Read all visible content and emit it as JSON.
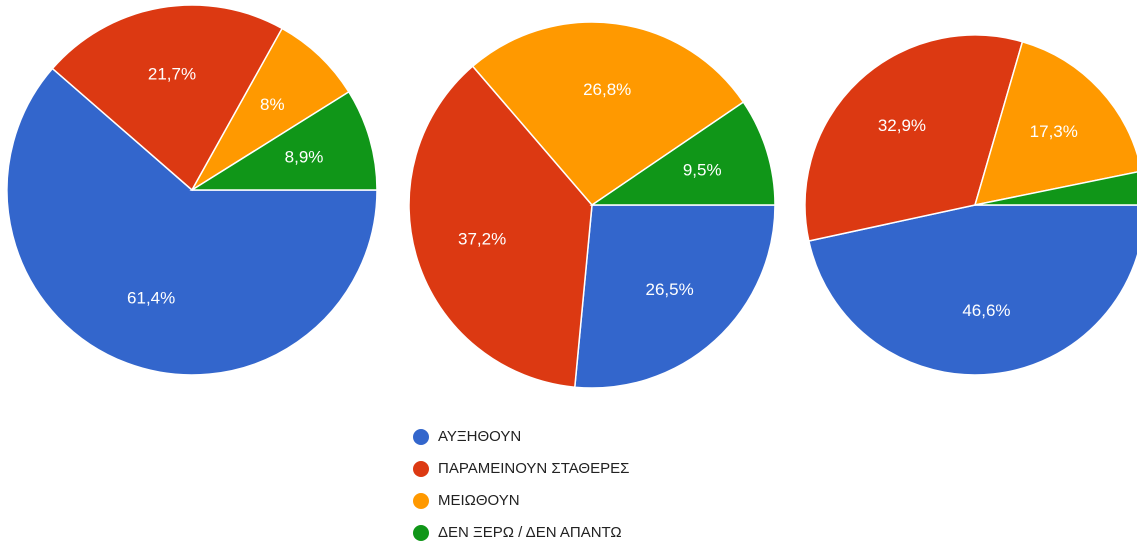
{
  "legend": {
    "categories": [
      "ΑΥΞΗΘΟΥΝ",
      "ΠΑΡΑΜΕΙΝΟΥΝ ΣΤΑΘΕΡΕΣ",
      "ΜΕΙΩΘΟΥΝ",
      "ΔΕΝ ΞΕΡΩ / ΔΕΝ ΑΠΑΝΤΩ"
    ],
    "colors": [
      "#3366cc",
      "#dc3912",
      "#ff9900",
      "#109618"
    ]
  },
  "chart_data": [
    {
      "type": "pie",
      "values": [
        61.4,
        21.7,
        8,
        8.9
      ],
      "value_labels": [
        "61,4%",
        "21,7%",
        "8%",
        "8,9%"
      ]
    },
    {
      "type": "pie",
      "values": [
        26.5,
        37.2,
        26.8,
        9.5
      ],
      "value_labels": [
        "26,5%",
        "37,2%",
        "26,8%",
        "9,5%"
      ]
    },
    {
      "type": "pie",
      "values": [
        46.6,
        32.9,
        17.3,
        3.2
      ],
      "value_labels": [
        "46,6%",
        "32,9%",
        "17,3%",
        null
      ]
    }
  ]
}
